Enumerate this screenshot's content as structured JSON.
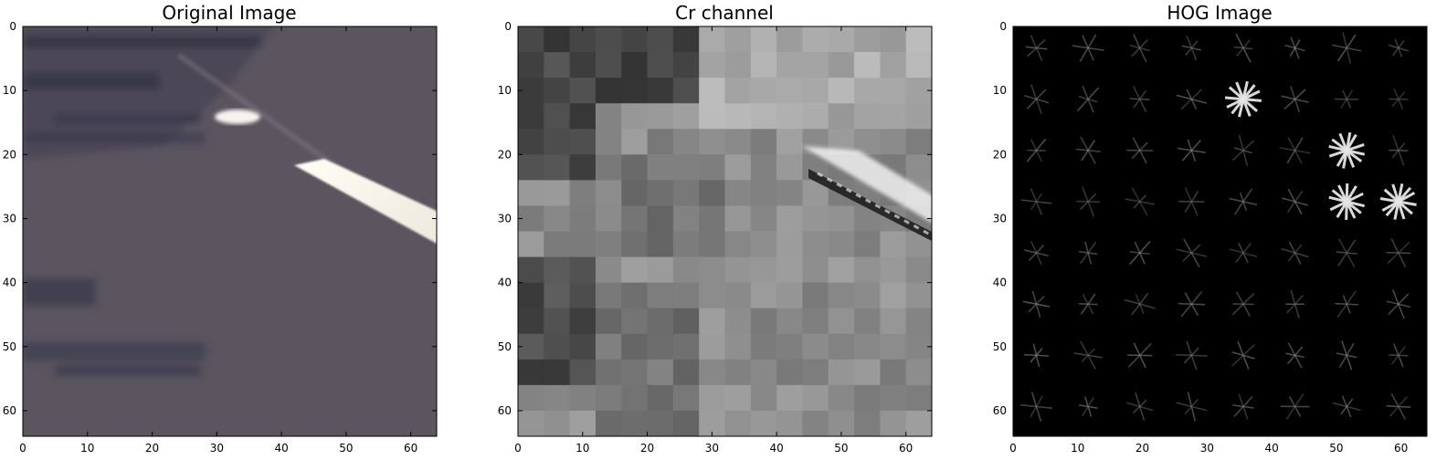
{
  "chart_data": [
    {
      "type": "heatmap",
      "title": "Original Image",
      "xlabel": "",
      "ylabel": "",
      "xlim": [
        0,
        64
      ],
      "ylim": [
        64,
        0
      ],
      "xticks": [
        0,
        10,
        20,
        30,
        40,
        50,
        60
      ],
      "yticks": [
        0,
        10,
        20,
        30,
        40,
        50,
        60
      ],
      "grid": false,
      "image_size": [
        64,
        64
      ],
      "content": "road surface patch with a white lane marking stripe",
      "colors": {
        "road": "#5b5560",
        "road_dark": "#3f3d4a",
        "marking": "#f4f2ea"
      }
    },
    {
      "type": "heatmap",
      "title": "Cr channel",
      "xlabel": "",
      "ylabel": "",
      "xlim": [
        0,
        64
      ],
      "ylim": [
        64,
        0
      ],
      "xticks": [
        0,
        10,
        20,
        30,
        40,
        50,
        60
      ],
      "yticks": [
        0,
        10,
        20,
        30,
        40,
        50,
        60
      ],
      "grid": false,
      "image_size": [
        64,
        64
      ],
      "colormap": "gray",
      "content": "blocky grayscale chroma channel with a diagonal light/dark edge"
    },
    {
      "type": "heatmap",
      "title": "HOG Image",
      "xlabel": "",
      "ylabel": "",
      "xlim": [
        0,
        64
      ],
      "ylim": [
        64,
        0
      ],
      "xticks": [
        0,
        10,
        20,
        30,
        40,
        50,
        60
      ],
      "yticks": [
        0,
        10,
        20,
        30,
        40,
        50,
        60
      ],
      "grid": false,
      "image_size": [
        64,
        64
      ],
      "colormap": "gray",
      "cell_grid": [
        8,
        8
      ],
      "strong_cells": [
        [
          6,
          3
        ],
        [
          7,
          3
        ],
        [
          6,
          2
        ],
        [
          4,
          1
        ]
      ]
    }
  ]
}
